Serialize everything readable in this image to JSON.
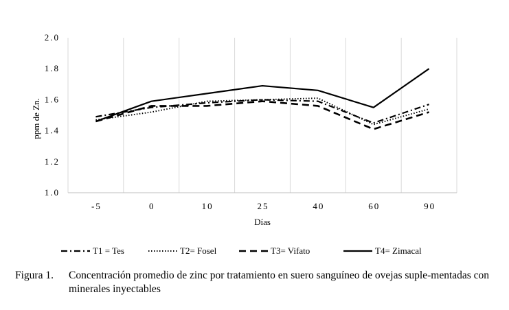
{
  "chart_data": {
    "type": "line",
    "title": "",
    "xlabel": "Días",
    "ylabel": "ppm de Zn.",
    "categories": [
      "-5",
      "0",
      "10",
      "25",
      "40",
      "60",
      "90"
    ],
    "ylim": [
      1.0,
      2.0
    ],
    "yticks": [
      "1.0",
      "1.2",
      "1.4",
      "1.6",
      "1.8",
      "2.0"
    ],
    "grid": "vertical",
    "legend_position": "bottom",
    "series": [
      {
        "name": "T1 = Tes",
        "style": "dash-dot",
        "values": [
          1.49,
          1.55,
          1.58,
          1.6,
          1.59,
          1.45,
          1.57
        ]
      },
      {
        "name": "T2= Fosel",
        "style": "dotted",
        "values": [
          1.47,
          1.52,
          1.59,
          1.6,
          1.61,
          1.44,
          1.54
        ]
      },
      {
        "name": "T3= Vifato",
        "style": "dashed",
        "values": [
          1.46,
          1.56,
          1.56,
          1.59,
          1.56,
          1.41,
          1.52
        ]
      },
      {
        "name": "T4= Zimacal",
        "style": "solid",
        "values": [
          1.46,
          1.59,
          1.64,
          1.69,
          1.66,
          1.55,
          1.8
        ]
      }
    ]
  },
  "caption": {
    "label": "Figura 1.",
    "text": "Concentración promedio de zinc por tratamiento en suero sanguíneo de ovejas suple-mentadas con minerales inyectables"
  },
  "colors": {
    "line": "#000000",
    "grid": "#d9d9d9",
    "axis": "#bfbfbf"
  }
}
